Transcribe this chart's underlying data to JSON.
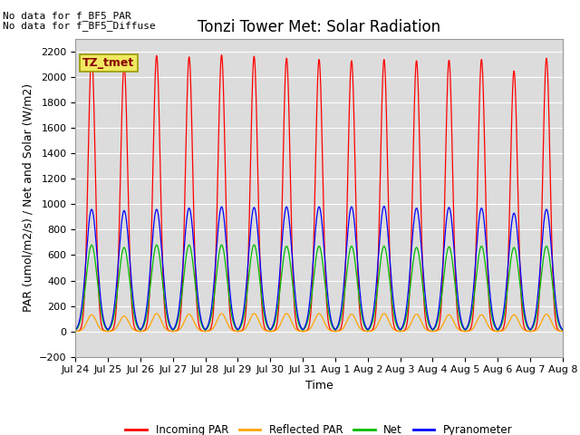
{
  "title": "Tonzi Tower Met: Solar Radiation",
  "ylabel": "PAR (umol/m2/s) / Net and Solar (W/m2)",
  "xlabel": "Time",
  "ylim": [
    -200,
    2300
  ],
  "yticks": [
    -200,
    0,
    200,
    400,
    600,
    800,
    1000,
    1200,
    1400,
    1600,
    1800,
    2000,
    2200
  ],
  "no_data_text1": "No data for f_BF5_PAR",
  "no_data_text2": "No data for f_BF5_Diffuse",
  "legend_box_text": "TZ_tmet",
  "colors": {
    "incoming_par": "#FF0000",
    "reflected_par": "#FFA500",
    "net": "#00BB00",
    "pyranometer": "#0000FF"
  },
  "legend_labels": [
    "Incoming PAR",
    "Reflected PAR",
    "Net",
    "Pyranometer"
  ],
  "xtick_labels": [
    "Jul 24",
    "Jul 25",
    "Jul 26",
    "Jul 27",
    "Jul 28",
    "Jul 29",
    "Jul 30",
    "Jul 31",
    "Aug 1",
    "Aug 2",
    "Aug 3",
    "Aug 4",
    "Aug 5",
    "Aug 6",
    "Aug 7",
    "Aug 8"
  ],
  "num_days": 15,
  "pts_per_day": 288,
  "incoming_par_peaks": [
    2180,
    2100,
    2170,
    2160,
    2175,
    2165,
    2150,
    2140,
    2130,
    2140,
    2130,
    2135,
    2140,
    2050,
    2150
  ],
  "reflected_par_peaks": [
    130,
    120,
    140,
    135,
    140,
    140,
    140,
    140,
    135,
    140,
    135,
    130,
    130,
    130,
    135
  ],
  "net_peaks": [
    680,
    660,
    680,
    680,
    680,
    680,
    670,
    670,
    670,
    670,
    660,
    665,
    670,
    660,
    670
  ],
  "net_night": -80,
  "pyranometer_peaks": [
    960,
    950,
    960,
    970,
    980,
    975,
    980,
    980,
    980,
    985,
    970,
    975,
    970,
    930,
    960
  ],
  "background_color": "#DCDCDC",
  "title_fontsize": 12,
  "axis_fontsize": 9,
  "tick_fontsize": 8
}
